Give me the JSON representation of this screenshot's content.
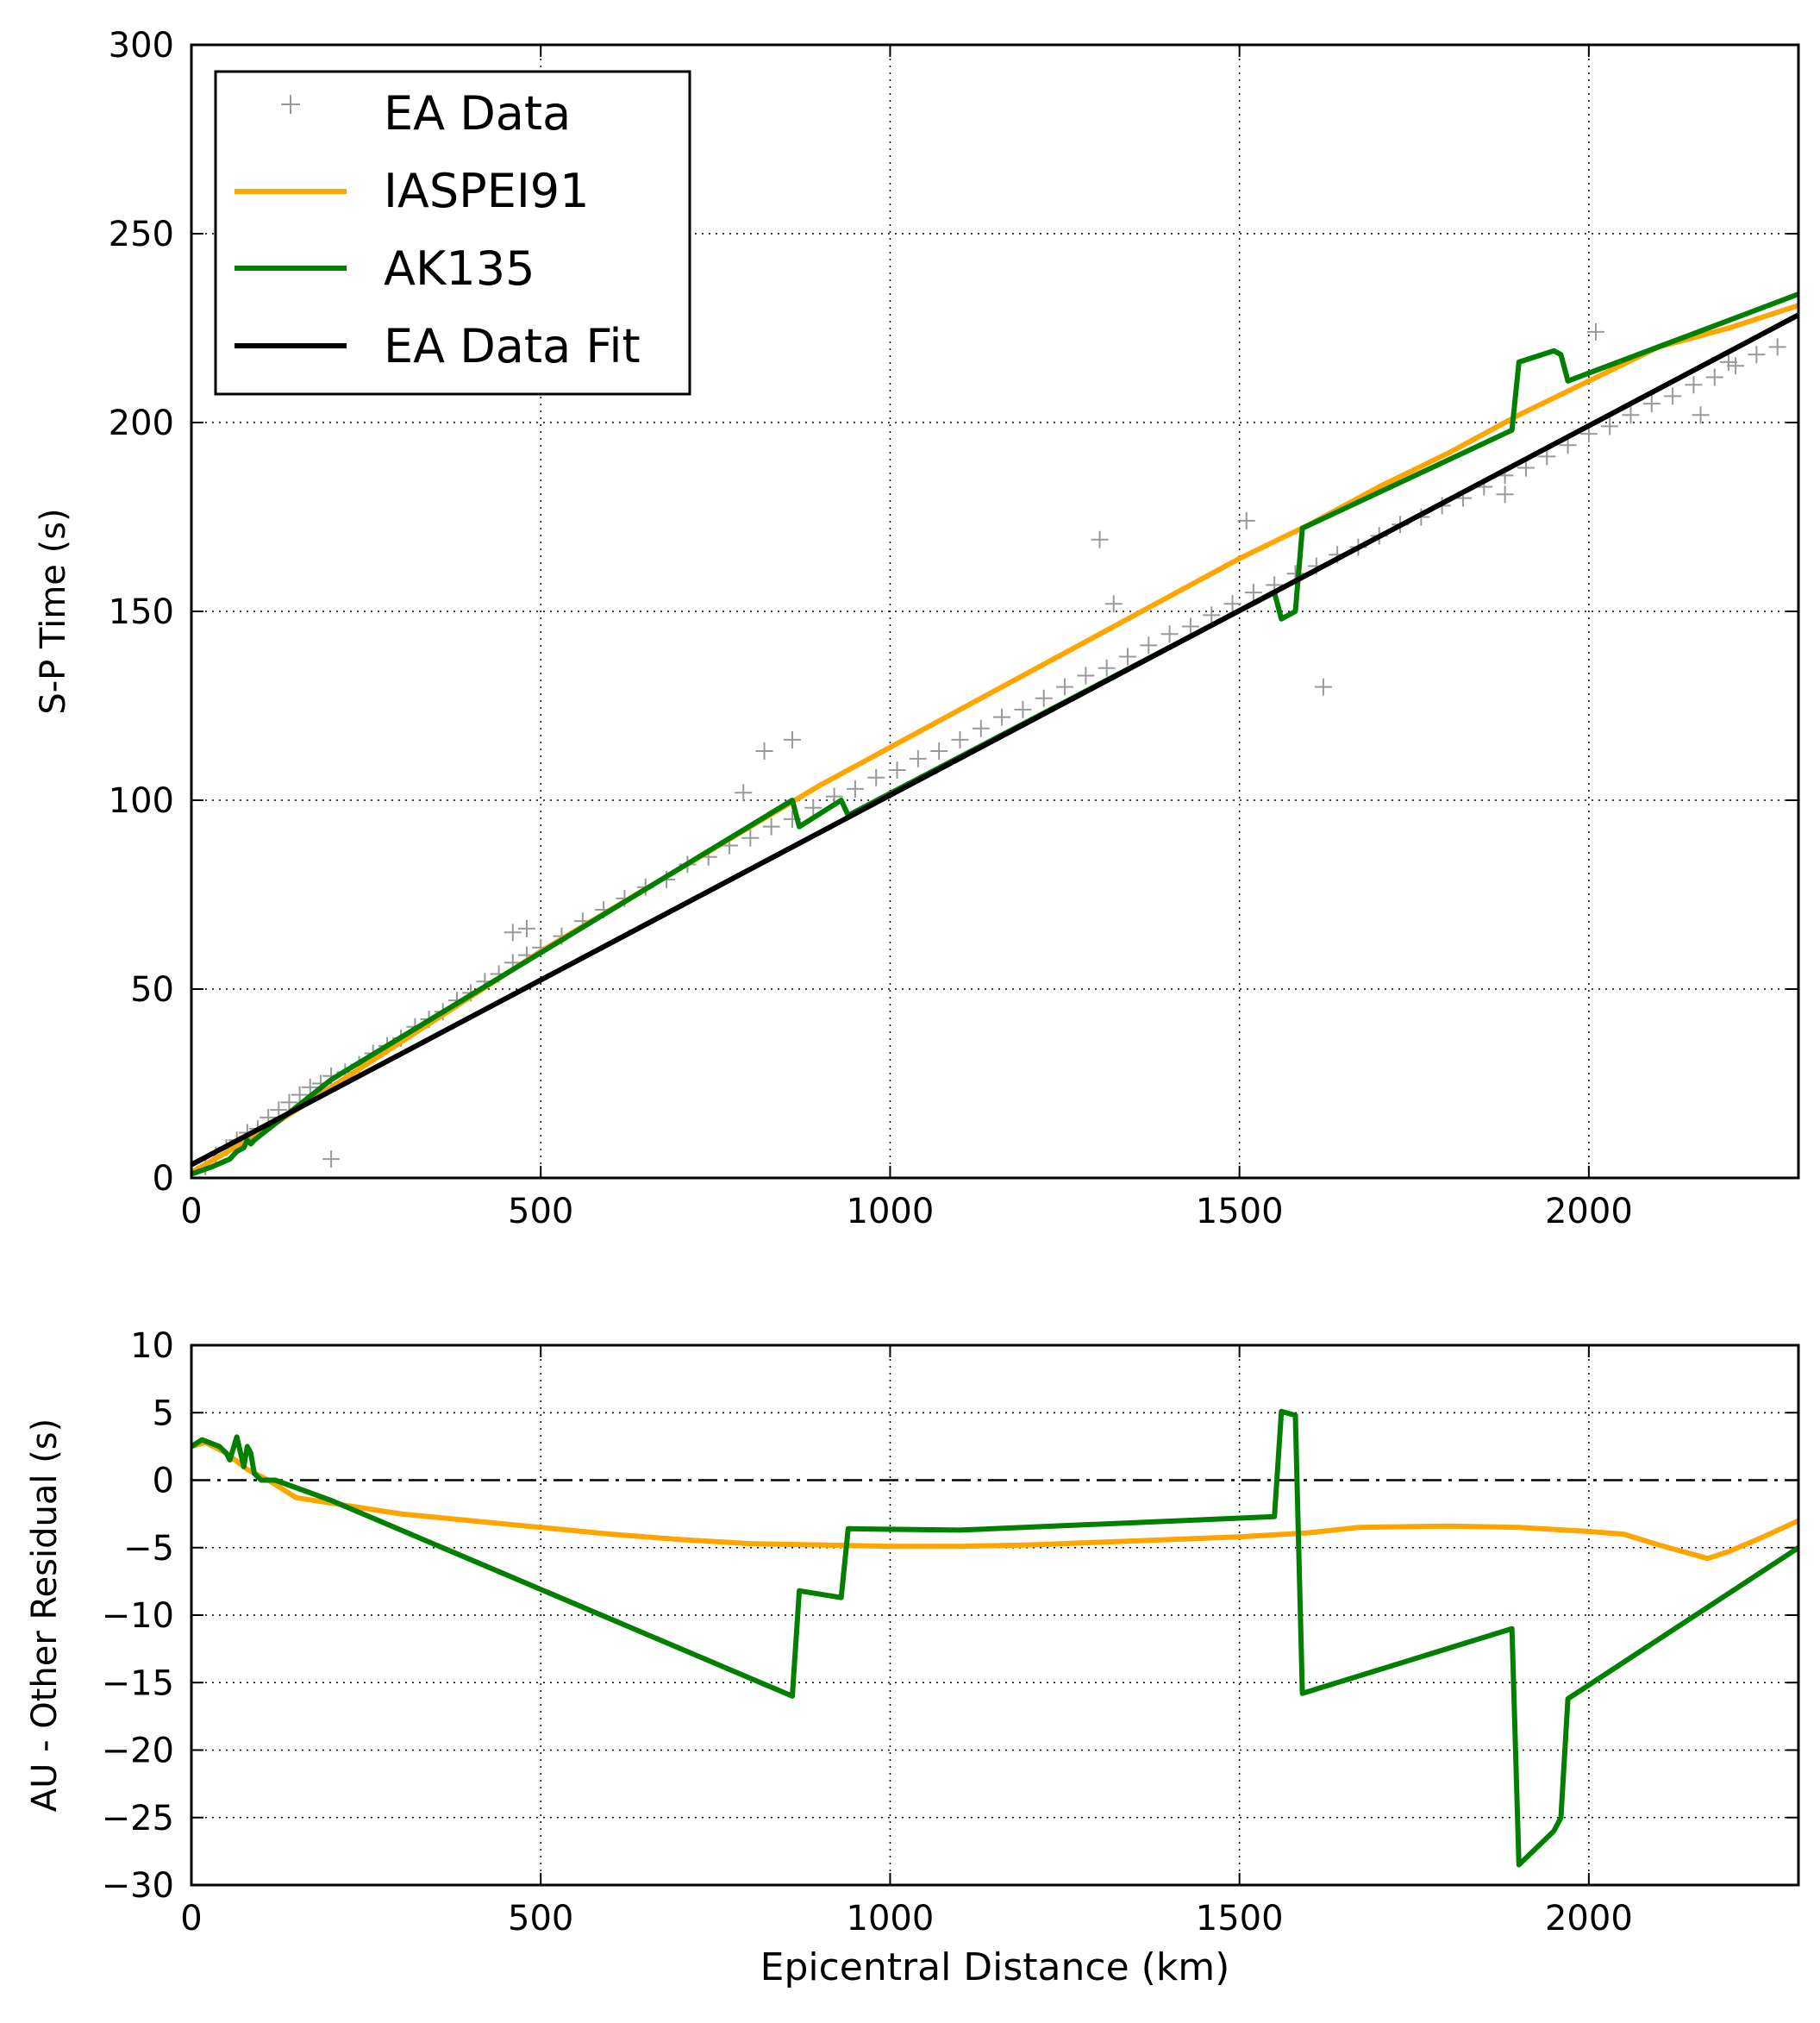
{
  "colors": {
    "data_markers": "#999999",
    "iaspei91": "#FFA500",
    "ak135": "#007F00",
    "fit": "#000000"
  },
  "chart_data": [
    {
      "type": "scatter",
      "ylabel": "S-P Time (s)",
      "xlabel": "",
      "xlim": [
        0,
        2300
      ],
      "ylim": [
        0,
        300
      ],
      "xticks": [
        "0",
        "500",
        "1000",
        "1500",
        "2000"
      ],
      "yticks": [
        "0",
        "50",
        "100",
        "150",
        "200",
        "250",
        "300"
      ],
      "grid": true,
      "legend": "top-left",
      "series": [
        {
          "name": "EA Data",
          "kind": "markers",
          "color": "#999999",
          "x": [
            20,
            35,
            50,
            65,
            80,
            95,
            110,
            125,
            140,
            155,
            170,
            185,
            200,
            220,
            240,
            260,
            280,
            300,
            320,
            340,
            360,
            380,
            400,
            420,
            440,
            460,
            480,
            500,
            530,
            560,
            590,
            620,
            650,
            680,
            710,
            740,
            770,
            800,
            830,
            860,
            890,
            920,
            950,
            980,
            1010,
            1040,
            1070,
            1100,
            1130,
            1160,
            1190,
            1220,
            1250,
            1280,
            1310,
            1340,
            1370,
            1400,
            1430,
            1460,
            1490,
            1520,
            1550,
            1580,
            1610,
            1640,
            1670,
            1700,
            1730,
            1760,
            1790,
            1820,
            1850,
            1880,
            1910,
            1940,
            1970,
            2000,
            2030,
            2060,
            2090,
            2120,
            2150,
            2180,
            2210,
            2240,
            2270,
            200,
            460,
            480,
            790,
            820,
            860,
            1300,
            1320,
            1510,
            1620,
            1880,
            2010,
            2160,
            2200
          ],
          "y": [
            3,
            6,
            8,
            10,
            12,
            13,
            16,
            18,
            20,
            22,
            24,
            25,
            27,
            28,
            30,
            33,
            35,
            37,
            40,
            42,
            44,
            47,
            49,
            52,
            54,
            57,
            59,
            61,
            64,
            68,
            71,
            74,
            77,
            79,
            83,
            85,
            88,
            90,
            93,
            95,
            98,
            101,
            103,
            106,
            108,
            111,
            113,
            116,
            119,
            122,
            124,
            127,
            130,
            133,
            135,
            138,
            141,
            144,
            146,
            149,
            152,
            155,
            157,
            160,
            162,
            165,
            167,
            170,
            173,
            175,
            178,
            180,
            183,
            186,
            188,
            191,
            194,
            197,
            199,
            202,
            205,
            207,
            210,
            212,
            215,
            218,
            220,
            5,
            65,
            66,
            102,
            113,
            116,
            169,
            152,
            174,
            130,
            181,
            224,
            202,
            216
          ]
        },
        {
          "name": "IASPEI91",
          "kind": "line",
          "color": "#FFA500",
          "x": [
            0,
            100,
            200,
            300,
            400,
            500,
            600,
            700,
            800,
            900,
            1000,
            1100,
            1200,
            1300,
            1400,
            1500,
            1600,
            1700,
            1800,
            1900,
            2000,
            2100,
            2200,
            2300
          ],
          "y": [
            1.5,
            12,
            24,
            36,
            48,
            60,
            71,
            82,
            93,
            104,
            114,
            124,
            134,
            144,
            154,
            164,
            173,
            183,
            192,
            202,
            211,
            220,
            225,
            231
          ]
        },
        {
          "name": "AK135",
          "kind": "line",
          "color": "#007F00",
          "x": [
            0,
            30,
            55,
            65,
            75,
            80,
            85,
            90,
            200,
            860,
            870,
            930,
            940,
            1550,
            1560,
            1580,
            1590,
            1890,
            1900,
            1950,
            1960,
            1970,
            2300
          ],
          "y": [
            1,
            3,
            5,
            7,
            8,
            10,
            9,
            10,
            26,
            100,
            93,
            100,
            96,
            155,
            148,
            150,
            172,
            198,
            216,
            219,
            218,
            211,
            234
          ]
        },
        {
          "name": "EA Data Fit",
          "kind": "line",
          "color": "#000000",
          "x": [
            0,
            2300
          ],
          "y": [
            3.5,
            228.5
          ]
        }
      ]
    },
    {
      "type": "line",
      "ylabel": "AU - Other Residual (s)",
      "xlabel": "Epicentral Distance (km)",
      "xlim": [
        0,
        2300
      ],
      "ylim": [
        -30,
        10
      ],
      "xticks": [
        "0",
        "500",
        "1000",
        "1500",
        "2000"
      ],
      "yticks": [
        "−30",
        "−25",
        "−20",
        "−15",
        "−10",
        "−5",
        "0",
        "5",
        "10"
      ],
      "grid": true,
      "zero_line": "dash-dot",
      "series": [
        {
          "color": "#FFA500",
          "x": [
            0,
            20,
            50,
            80,
            110,
            150,
            200,
            300,
            400,
            500,
            600,
            700,
            800,
            900,
            1000,
            1100,
            1200,
            1300,
            1400,
            1500,
            1600,
            1670,
            1800,
            1900,
            2000,
            2050,
            2100,
            2170,
            2200,
            2250,
            2300
          ],
          "y": [
            2.5,
            2.8,
            2,
            0.8,
            0,
            -1.3,
            -1.7,
            -2.5,
            -3.0,
            -3.5,
            -4.0,
            -4.4,
            -4.7,
            -4.8,
            -4.9,
            -4.9,
            -4.8,
            -4.6,
            -4.4,
            -4.2,
            -3.9,
            -3.5,
            -3.4,
            -3.5,
            -3.8,
            -4.0,
            -4.8,
            -5.8,
            -5.3,
            -4.2,
            -3.0
          ]
        },
        {
          "color": "#007F00",
          "x": [
            0,
            15,
            40,
            50,
            55,
            65,
            75,
            80,
            85,
            90,
            100,
            120,
            200,
            860,
            870,
            930,
            940,
            1100,
            1550,
            1560,
            1580,
            1590,
            1890,
            1900,
            1930,
            1950,
            1960,
            1970,
            2300
          ],
          "y": [
            2.5,
            3,
            2.5,
            2.0,
            1.5,
            3.2,
            1.0,
            2.5,
            2.0,
            0.5,
            0,
            0,
            -1.5,
            -16,
            -8.2,
            -8.7,
            -3.6,
            -3.7,
            -2.7,
            5.1,
            4.8,
            -15.8,
            -11.0,
            -28.5,
            -27.0,
            -26.0,
            -25.0,
            -16.2,
            -5.0
          ]
        }
      ]
    }
  ]
}
